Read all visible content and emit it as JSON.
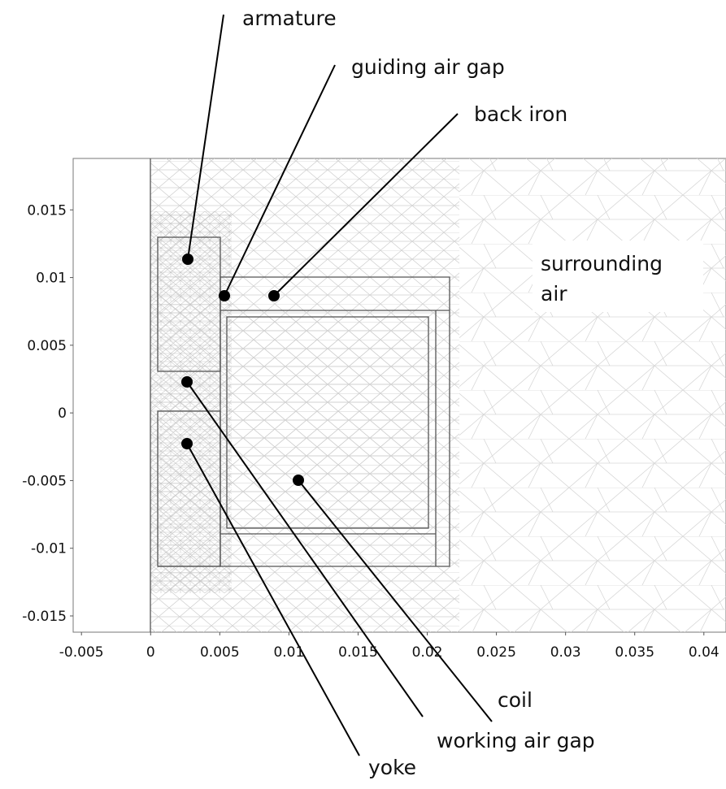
{
  "axes": {
    "xlim": [
      -0.0056,
      0.0416
    ],
    "ylim": [
      -0.0162,
      0.0188
    ],
    "xticks": [
      -0.005,
      0,
      0.005,
      0.01,
      0.015,
      0.02,
      0.025,
      0.03,
      0.035,
      0.04
    ],
    "yticks": [
      0.015,
      0.01,
      0.005,
      0,
      -0.005,
      -0.01,
      -0.015
    ]
  },
  "labels": {
    "armature": "armature",
    "guiding_air_gap": "guiding air gap",
    "back_iron": "back iron",
    "surrounding_air": [
      "surrounding",
      "air"
    ],
    "coil": "coil",
    "working_air_gap": "working air gap",
    "yoke": "yoke"
  }
}
